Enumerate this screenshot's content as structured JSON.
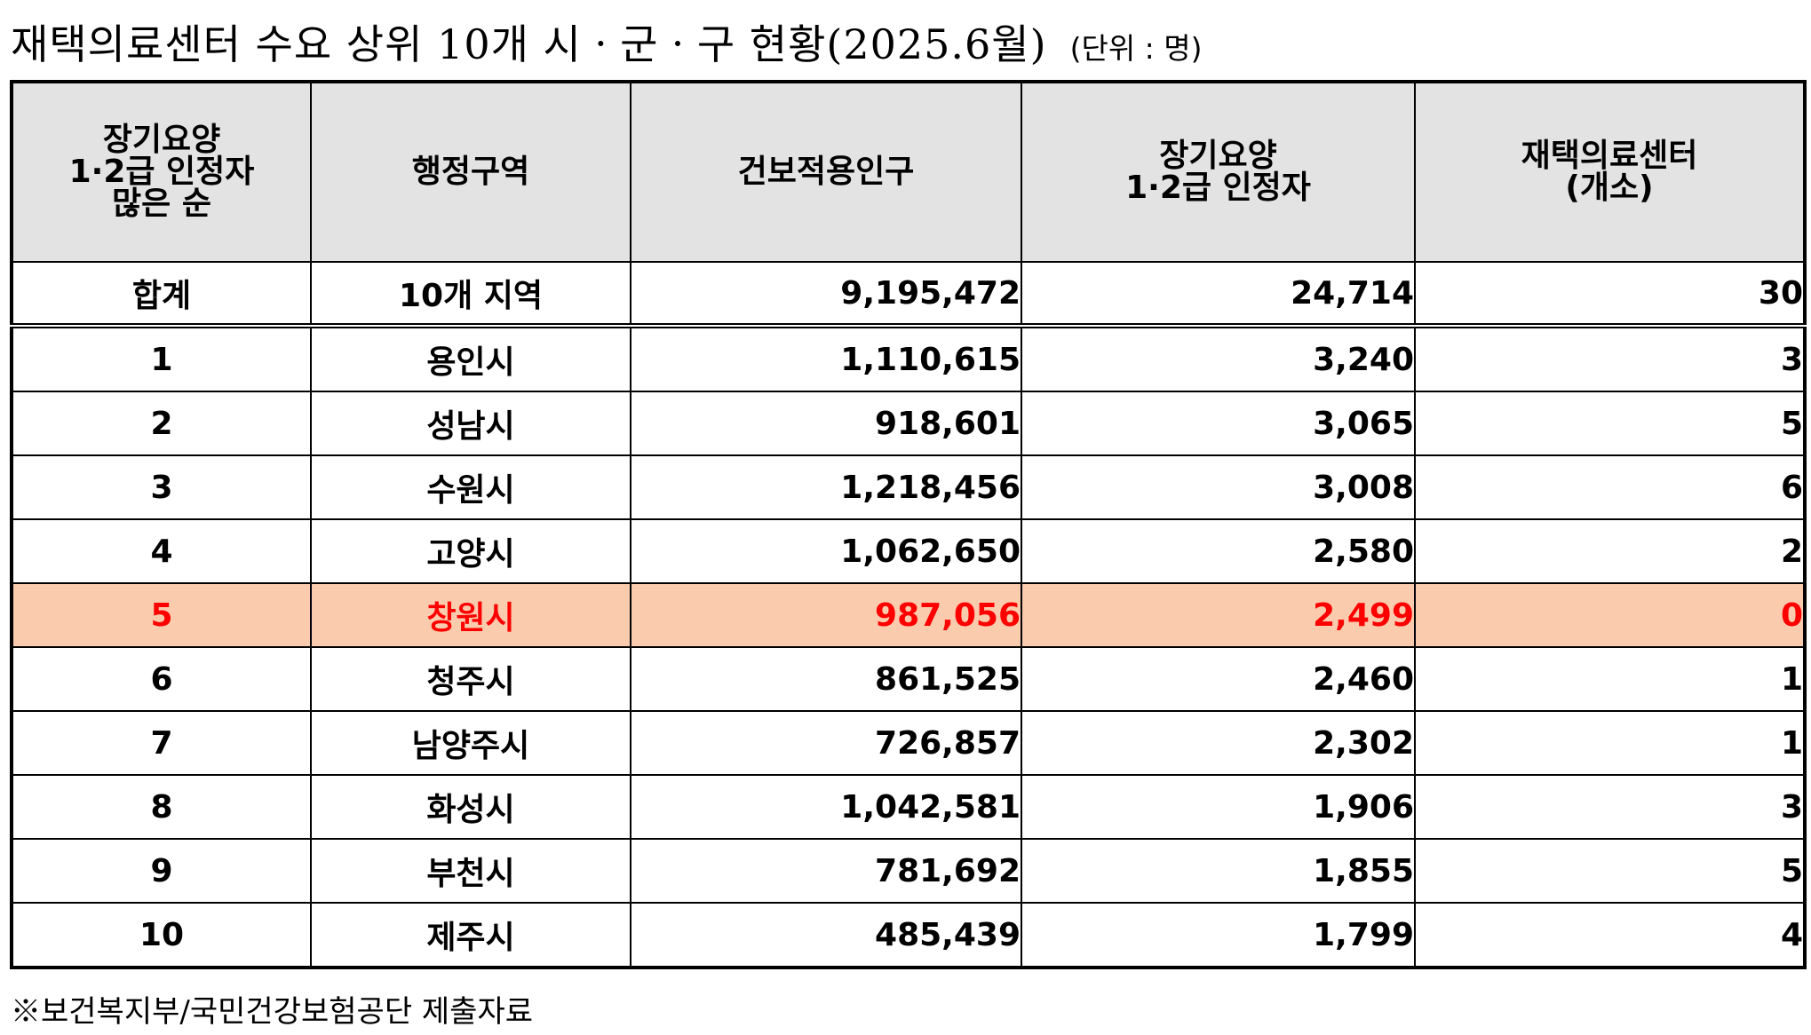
{
  "title": "재택의료센터 수요 상위 10개 시ㆍ군ㆍ구 현황(2025.6월)",
  "unit_note": "(단위 : 명)",
  "columns": [
    "장기요양\n1·2급 인정자\n많은 순",
    "행정구역",
    "건보적용인구",
    "장기요양\n1·2급 인정자",
    "재택의료센터\n(개소)"
  ],
  "total": {
    "rank": "합계",
    "region": "10개 지역",
    "population": "9,195,472",
    "recipients": "24,714",
    "centers": "30"
  },
  "rows": [
    {
      "rank": "1",
      "region": "용인시",
      "population": "1,110,615",
      "recipients": "3,240",
      "centers": "3"
    },
    {
      "rank": "2",
      "region": "성남시",
      "population": "918,601",
      "recipients": "3,065",
      "centers": "5"
    },
    {
      "rank": "3",
      "region": "수원시",
      "population": "1,218,456",
      "recipients": "3,008",
      "centers": "6"
    },
    {
      "rank": "4",
      "region": "고양시",
      "population": "1,062,650",
      "recipients": "2,580",
      "centers": "2"
    },
    {
      "rank": "5",
      "region": "창원시",
      "population": "987,056",
      "recipients": "2,499",
      "centers": "0"
    },
    {
      "rank": "6",
      "region": "청주시",
      "population": "861,525",
      "recipients": "2,460",
      "centers": "1"
    },
    {
      "rank": "7",
      "region": "남양주시",
      "population": "726,857",
      "recipients": "2,302",
      "centers": "1"
    },
    {
      "rank": "8",
      "region": "화성시",
      "population": "1,042,581",
      "recipients": "1,906",
      "centers": "3"
    },
    {
      "rank": "9",
      "region": "부천시",
      "population": "781,692",
      "recipients": "1,855",
      "centers": "5"
    },
    {
      "rank": "10",
      "region": "제주시",
      "population": "485,439",
      "recipients": "1,799",
      "centers": "4"
    }
  ],
  "highlight": {
    "row_background": "#fbcbad",
    "text_color": "#ff0000"
  },
  "header_background": "#e3e3e3",
  "footnote": "※보건복지부/국민건강보험공단 제출자료"
}
